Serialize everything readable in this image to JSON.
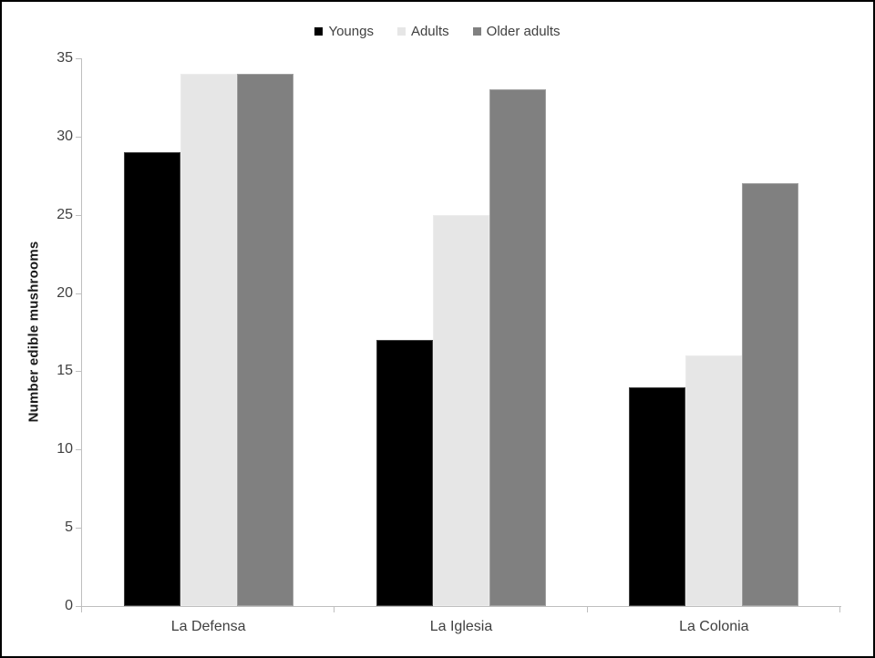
{
  "chart_data": {
    "type": "bar",
    "title": "",
    "xlabel": "",
    "ylabel": "Number edible mushrooms",
    "categories": [
      "La Defensa",
      "La Iglesia",
      "La Colonia"
    ],
    "series": [
      {
        "name": "Youngs",
        "color": "#000000",
        "values": [
          29,
          17,
          14
        ]
      },
      {
        "name": "Adults",
        "color": "#e6e6e6",
        "values": [
          34,
          25,
          16
        ]
      },
      {
        "name": "Older adults",
        "color": "#808080",
        "values": [
          34,
          33,
          27
        ]
      }
    ],
    "ylim": [
      0,
      35
    ],
    "yticks": [
      0,
      5,
      10,
      15,
      20,
      25,
      30,
      35
    ],
    "grid": false,
    "legend_position": "top-center"
  },
  "colors": {
    "axis": "#bfbfbf",
    "text": "#404040",
    "frame_border": "#000000",
    "background": "#ffffff"
  }
}
